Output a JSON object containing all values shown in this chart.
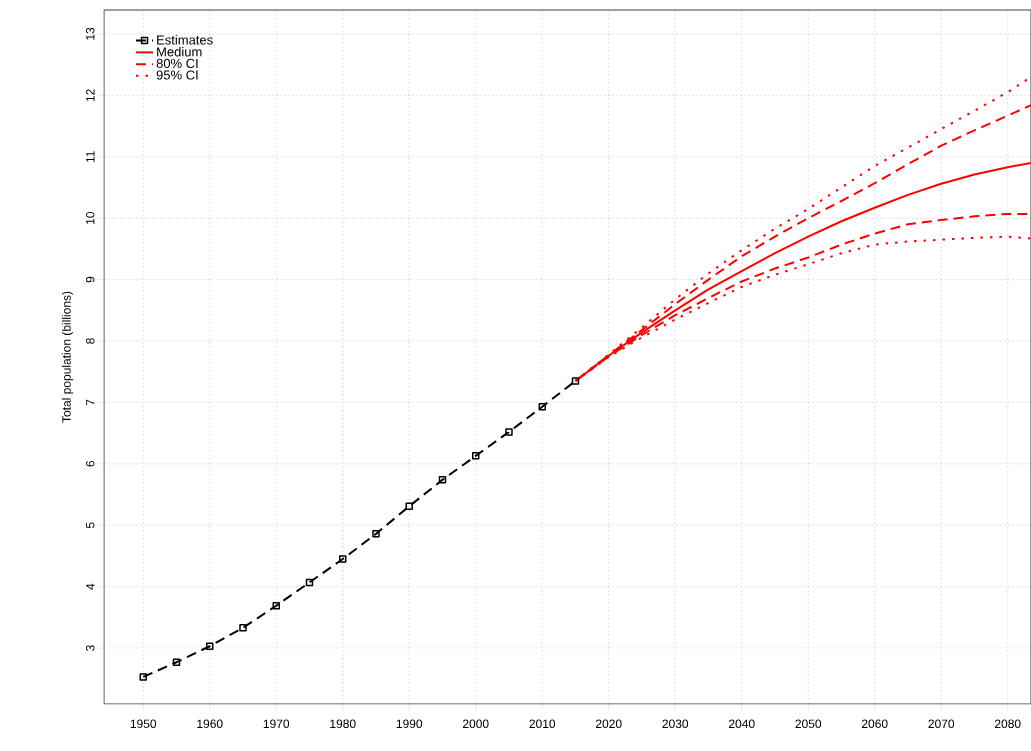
{
  "chart_data": {
    "type": "line",
    "ylabel": "Total population (billions)",
    "xlim": [
      1944.1,
      2083.5
    ],
    "ylim": [
      2.09,
      13.39
    ],
    "xticks": [
      1950,
      1960,
      1970,
      1980,
      1990,
      2000,
      2010,
      2020,
      2030,
      2040,
      2050,
      2060,
      2070,
      2080
    ],
    "yticks": [
      3,
      4,
      5,
      6,
      7,
      8,
      9,
      10,
      11,
      12,
      13
    ],
    "grid": true,
    "legend": "top left",
    "series": [
      {
        "name": "Estimates",
        "color": "#000000",
        "line_style": "dashed",
        "marker": "square",
        "x": [
          1950,
          1955,
          1960,
          1965,
          1970,
          1975,
          1980,
          1985,
          1990,
          1995,
          2000,
          2005,
          2010,
          2015
        ],
        "values": [
          2.53,
          2.77,
          3.03,
          3.33,
          3.69,
          4.07,
          4.45,
          4.86,
          5.31,
          5.74,
          6.13,
          6.52,
          6.93,
          7.35
        ]
      },
      {
        "name": "Medium",
        "color": "#ff0000",
        "line_style": "solid",
        "x": [
          2015,
          2020,
          2025,
          2030,
          2035,
          2040,
          2045,
          2050,
          2055,
          2060,
          2065,
          2070,
          2075,
          2080,
          2083.5
        ],
        "values": [
          7.35,
          7.76,
          8.14,
          8.5,
          8.84,
          9.14,
          9.43,
          9.7,
          9.95,
          10.17,
          10.38,
          10.56,
          10.71,
          10.83,
          10.9
        ]
      },
      {
        "name": "80% CI",
        "color": "#ff0000",
        "line_style": "dashed",
        "x": [
          2015,
          2020,
          2025,
          2030,
          2035,
          2040,
          2045,
          2050,
          2055,
          2060,
          2065,
          2070,
          2075,
          2080,
          2083.5
        ],
        "values": [
          7.35,
          7.77,
          8.18,
          8.6,
          9.0,
          9.38,
          9.7,
          10.0,
          10.28,
          10.57,
          10.88,
          11.18,
          11.43,
          11.67,
          11.84
        ]
      },
      {
        "color": "#ff0000",
        "line_style": "dashed",
        "x": [
          2015,
          2020,
          2025,
          2030,
          2035,
          2040,
          2045,
          2050,
          2055,
          2060,
          2065,
          2070,
          2075,
          2080,
          2083.5
        ],
        "values": [
          7.35,
          7.75,
          8.1,
          8.42,
          8.7,
          8.97,
          9.18,
          9.36,
          9.57,
          9.75,
          9.9,
          9.97,
          10.03,
          10.07,
          10.07
        ]
      },
      {
        "name": "95% CI",
        "color": "#ff0000",
        "line_style": "dotted",
        "x": [
          2015,
          2020,
          2025,
          2030,
          2035,
          2040,
          2045,
          2050,
          2055,
          2060,
          2065,
          2070,
          2075,
          2080,
          2083.5
        ],
        "values": [
          7.35,
          7.78,
          8.22,
          8.68,
          9.1,
          9.48,
          9.83,
          10.15,
          10.5,
          10.85,
          11.15,
          11.45,
          11.75,
          12.05,
          12.3
        ]
      },
      {
        "color": "#ff0000",
        "line_style": "dotted",
        "x": [
          2015,
          2020,
          2025,
          2030,
          2035,
          2040,
          2045,
          2050,
          2055,
          2060,
          2065,
          2070,
          2075,
          2080,
          2083.5
        ],
        "values": [
          7.35,
          7.74,
          8.06,
          8.35,
          8.62,
          8.88,
          9.08,
          9.25,
          9.43,
          9.57,
          9.62,
          9.65,
          9.68,
          9.7,
          9.67
        ]
      }
    ]
  }
}
